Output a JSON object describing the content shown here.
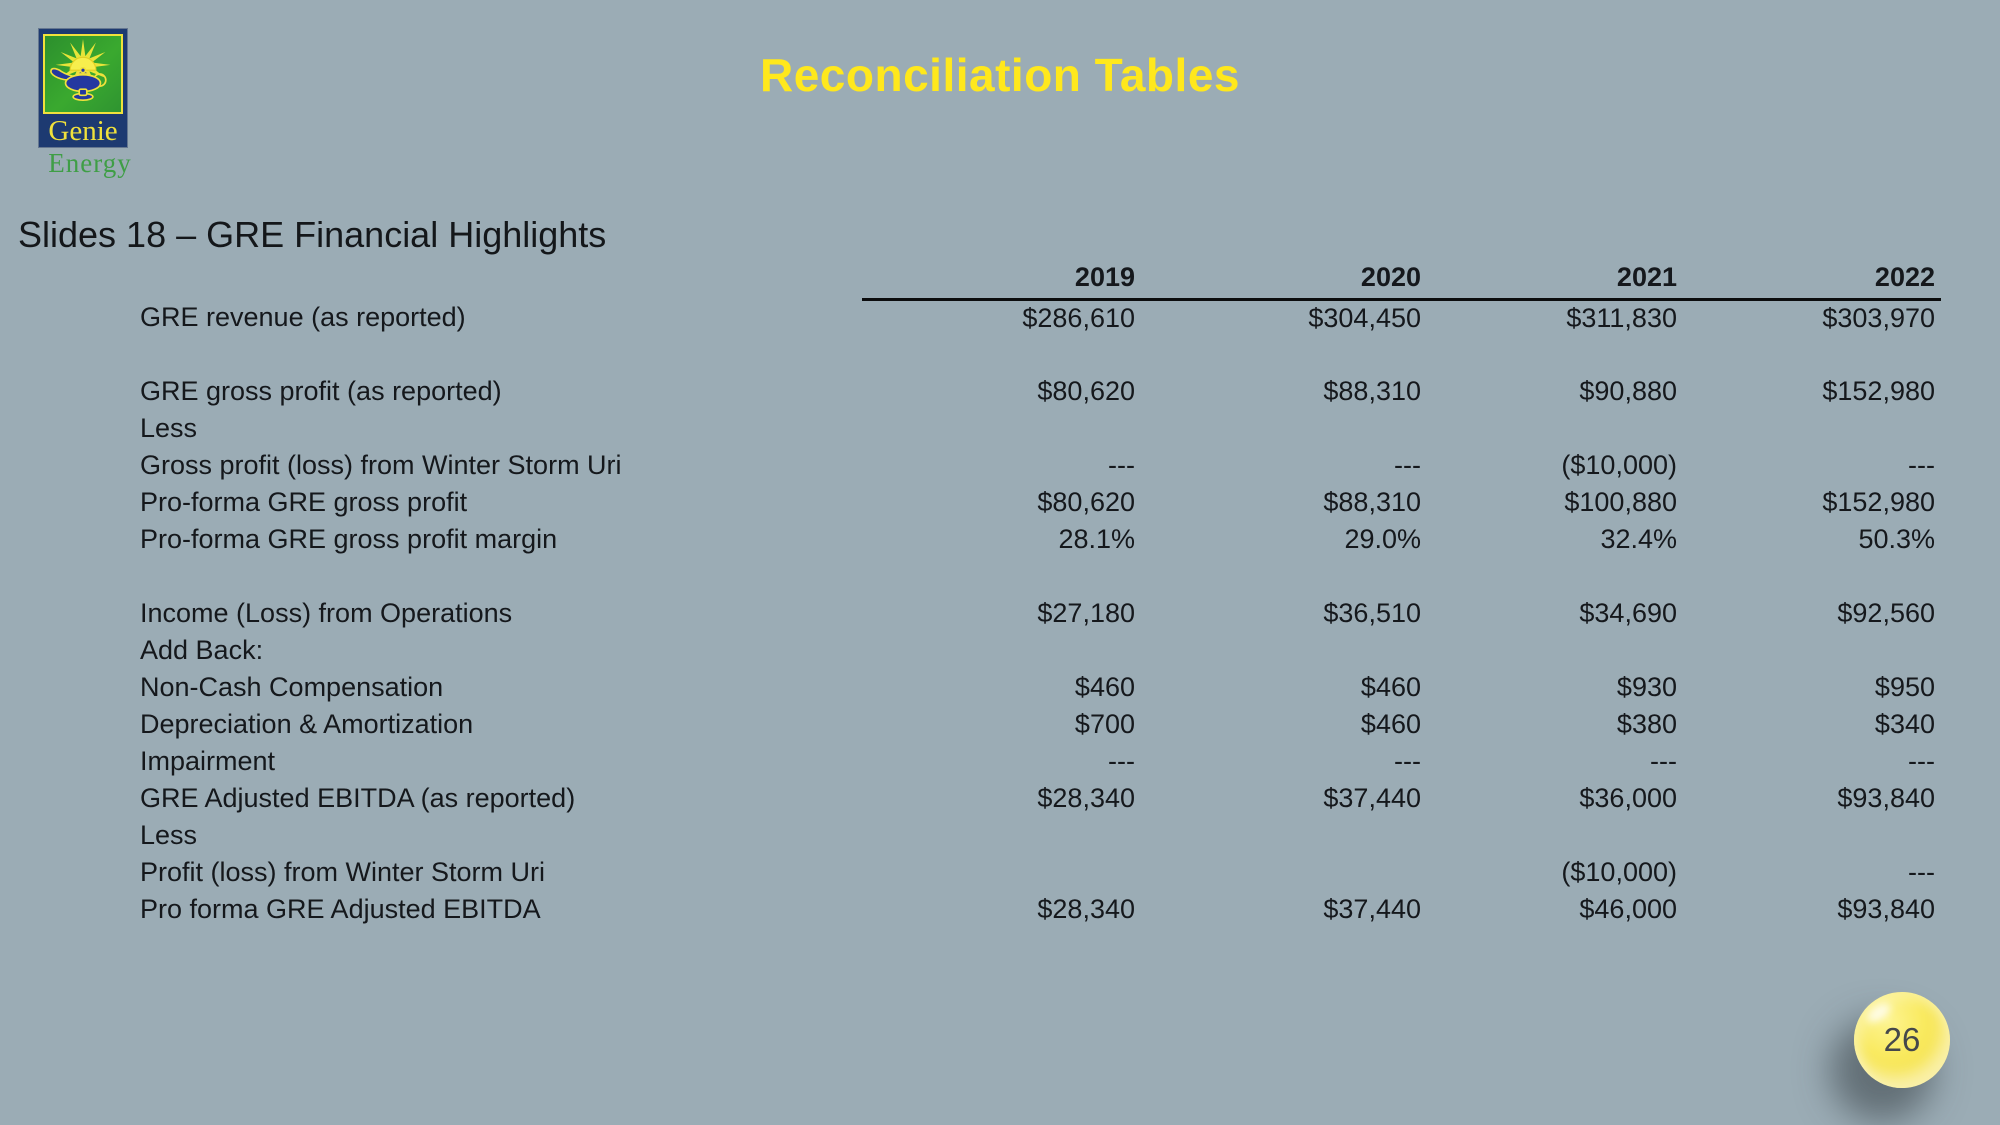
{
  "slide": {
    "title": "Reconciliation Tables",
    "subtitle": "Slides 18 – GRE Financial Highlights",
    "page_number": "26",
    "colors": {
      "background": "#9bacb5",
      "title_yellow": "#ffe81c",
      "text": "#15181c",
      "badge_yellow": "#f4e047"
    }
  },
  "logo": {
    "name": "genie-energy-logo",
    "wordmark": "Genie",
    "tagline": "Energy",
    "colors": {
      "navy": "#1d3a71",
      "green": "#2f9430",
      "yellow": "#f0e13c",
      "lamp_blue": "#2438a0"
    }
  },
  "table": {
    "columns": [
      "2019",
      "2020",
      "2021",
      "2022"
    ],
    "rows": [
      {
        "label": "GRE revenue (as reported)",
        "values": [
          "$286,610",
          "$304,450",
          "$311,830",
          "$303,970"
        ]
      },
      {
        "label": "",
        "values": [
          "",
          "",
          "",
          ""
        ],
        "spacer": true
      },
      {
        "label": "GRE gross profit (as reported)",
        "values": [
          "$80,620",
          "$88,310",
          "$90,880",
          "$152,980"
        ]
      },
      {
        "label": "Less",
        "values": [
          "",
          "",
          "",
          ""
        ]
      },
      {
        "label": "Gross profit (loss) from Winter Storm Uri",
        "values": [
          "---",
          "---",
          "($10,000)",
          "---"
        ]
      },
      {
        "label": "Pro-forma GRE gross profit",
        "values": [
          "$80,620",
          "$88,310",
          "$100,880",
          "$152,980"
        ]
      },
      {
        "label": "Pro-forma GRE gross profit margin",
        "values": [
          "28.1%",
          "29.0%",
          "32.4%",
          "50.3%"
        ]
      },
      {
        "label": "",
        "values": [
          "",
          "",
          "",
          ""
        ],
        "spacer": true
      },
      {
        "label": "Income (Loss) from Operations",
        "values": [
          "$27,180",
          "$36,510",
          "$34,690",
          "$92,560"
        ]
      },
      {
        "label": "Add Back:",
        "values": [
          "",
          "",
          "",
          ""
        ]
      },
      {
        "label": "Non-Cash Compensation",
        "values": [
          "$460",
          "$460",
          "$930",
          "$950"
        ]
      },
      {
        "label": "Depreciation & Amortization",
        "values": [
          "$700",
          "$460",
          "$380",
          "$340"
        ]
      },
      {
        "label": "Impairment",
        "values": [
          "---",
          "---",
          "---",
          "---"
        ]
      },
      {
        "label": "GRE Adjusted EBITDA (as reported)",
        "values": [
          "$28,340",
          "$37,440",
          "$36,000",
          "$93,840"
        ]
      },
      {
        "label": "Less",
        "values": [
          "",
          "",
          "",
          ""
        ]
      },
      {
        "label": "Profit (loss) from Winter Storm Uri",
        "values": [
          "",
          "",
          "($10,000)",
          "---"
        ]
      },
      {
        "label": "Pro forma GRE Adjusted EBITDA",
        "values": [
          "$28,340",
          "$37,440",
          "$46,000",
          "$93,840"
        ]
      }
    ]
  }
}
